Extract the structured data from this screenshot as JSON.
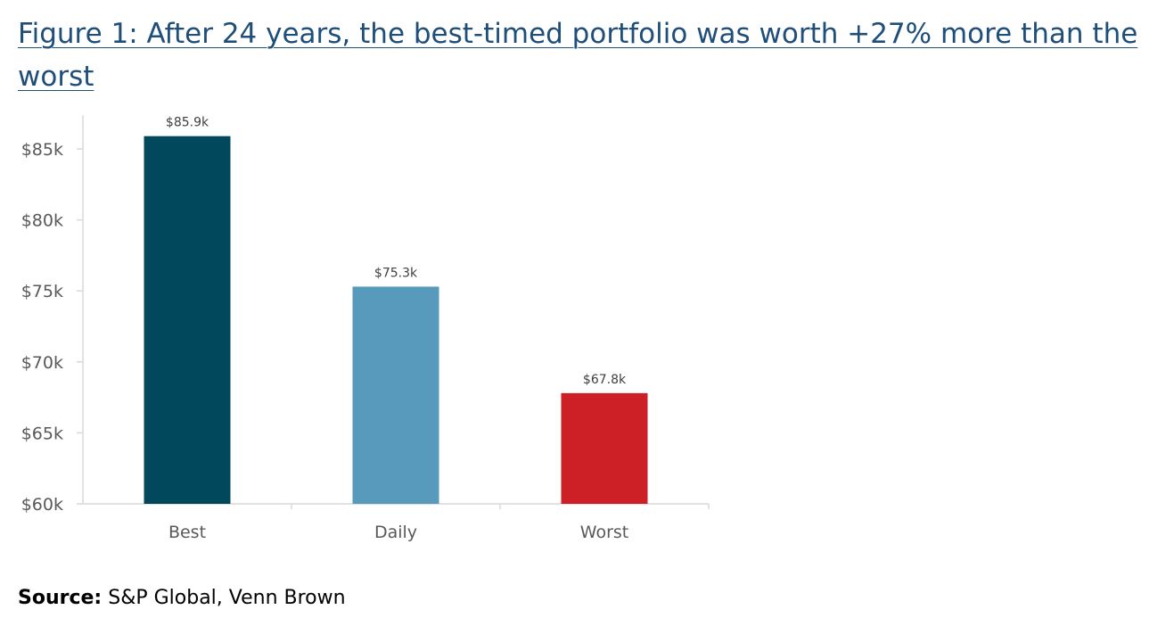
{
  "title": "Figure 1: After 24 years, the best-timed portfolio was worth +27% more than the worst",
  "source": {
    "label": "Source:",
    "text": " S&P Global, Venn Brown"
  },
  "chart_data": {
    "type": "bar",
    "title": "Figure 1: After 24 years, the best-timed portfolio was worth +27% more than the worst",
    "xlabel": "",
    "ylabel": "",
    "categories": [
      "Best",
      "Daily",
      "Worst"
    ],
    "values": [
      85.9,
      75.3,
      67.8
    ],
    "data_labels": [
      "$85.9k",
      "$75.3k",
      "$67.8k"
    ],
    "colors": [
      "#02485d",
      "#579abb",
      "#cc1f26"
    ],
    "ylim": [
      60,
      87
    ],
    "yticks": [
      60,
      65,
      70,
      75,
      80,
      85
    ],
    "ytick_labels": [
      "$60k",
      "$65k",
      "$70k",
      "$75k",
      "$80k",
      "$85k"
    ],
    "grid": false,
    "legend": "none"
  }
}
